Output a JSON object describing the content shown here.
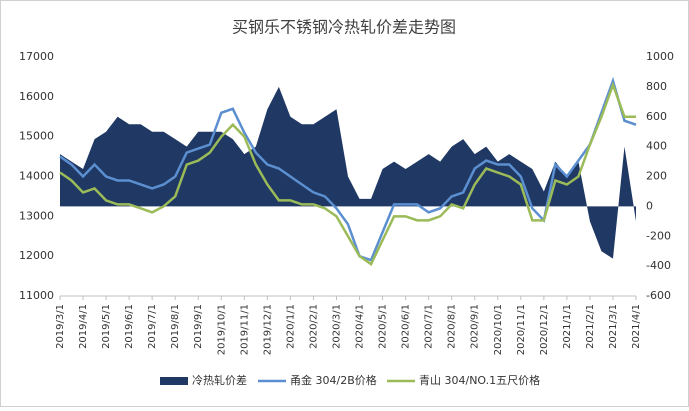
{
  "chart_data": {
    "type": "combo",
    "title": "买钢乐不锈钢冷热轧价差走势图",
    "categories": [
      "2019/3/1",
      null,
      "2019/4/1",
      null,
      "2019/5/1",
      null,
      "2019/6/1",
      null,
      "2019/7/1",
      null,
      "2019/8/1",
      null,
      "2019/9/1",
      null,
      "2019/10/1",
      null,
      "2019/11/1",
      null,
      "2019/12/1",
      null,
      "2020/1/1",
      null,
      "2020/2/1",
      null,
      "2020/3/1",
      null,
      "2020/4/1",
      null,
      "2020/5/1",
      null,
      "2020/6/1",
      null,
      "2020/7/1",
      null,
      "2020/8/1",
      null,
      "2020/9/1",
      null,
      "2020/10/1",
      null,
      "2020/11/1",
      null,
      "2020/12/1",
      null,
      "2021/1/1",
      null,
      "2021/2/1",
      null,
      "2021/3/1",
      null,
      "2021/4/1"
    ],
    "series": [
      {
        "name": "冷热轧价差",
        "type": "area",
        "axis": "y2",
        "color": "#1f3864",
        "values": [
          350,
          300,
          250,
          450,
          500,
          600,
          550,
          550,
          500,
          500,
          450,
          400,
          500,
          500,
          500,
          450,
          350,
          400,
          650,
          800,
          600,
          550,
          550,
          600,
          650,
          200,
          50,
          50,
          250,
          300,
          250,
          300,
          350,
          300,
          400,
          450,
          350,
          400,
          300,
          350,
          300,
          250,
          100,
          300,
          200,
          300,
          -100,
          -300,
          -350,
          400,
          -100
        ]
      },
      {
        "name": "甬金 304/2B价格",
        "type": "line",
        "color": "#5b8fd0",
        "values": [
          14500,
          14300,
          14000,
          14300,
          14000,
          13900,
          13900,
          13800,
          13700,
          13800,
          14000,
          14600,
          14700,
          14800,
          15600,
          15700,
          15100,
          14600,
          14300,
          14200,
          14000,
          13800,
          13600,
          13500,
          13200,
          12800,
          12000,
          11900,
          12600,
          13300,
          13300,
          13300,
          13100,
          13200,
          13500,
          13600,
          14200,
          14400,
          14300,
          14300,
          14000,
          13200,
          12900,
          14300,
          14000,
          14400,
          14800,
          15600,
          16400,
          15400,
          15300
        ]
      },
      {
        "name": "青山 304/NO.1五尺价格",
        "type": "line",
        "color": "#9bbb59",
        "values": [
          14100,
          13900,
          13600,
          13700,
          13400,
          13300,
          13300,
          13200,
          13100,
          13250,
          13500,
          14300,
          14400,
          14600,
          15000,
          15300,
          15000,
          14300,
          13800,
          13400,
          13400,
          13300,
          13300,
          13200,
          13000,
          12500,
          12000,
          11800,
          12400,
          13000,
          13000,
          12900,
          12900,
          13000,
          13300,
          13200,
          13800,
          14200,
          14100,
          14000,
          13800,
          12900,
          12900,
          13900,
          13800,
          14000,
          14800,
          15500,
          16300,
          15500,
          15500
        ]
      }
    ],
    "ylim": [
      11000,
      17000
    ],
    "yticks": [
      11000,
      12000,
      13000,
      14000,
      15000,
      16000,
      17000
    ],
    "y2lim": [
      -600,
      1000
    ],
    "y2ticks": [
      -600,
      -400,
      -200,
      0,
      200,
      400,
      600,
      800,
      1000
    ]
  }
}
